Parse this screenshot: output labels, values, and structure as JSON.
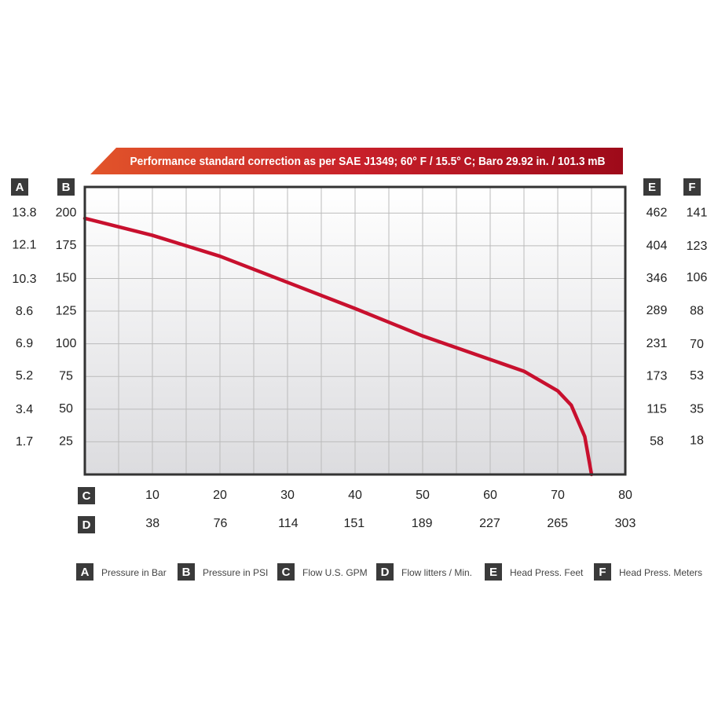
{
  "chart_data": {
    "type": "line",
    "title": "Performance standard correction as per SAE J1349;  60° F / 15.5° C;  Baro 29.92 in. / 101.3 mB",
    "x": [
      0,
      10,
      20,
      30,
      40,
      50,
      60,
      65,
      70,
      72,
      74,
      75
    ],
    "series": [
      {
        "color": "#c8102e",
        "values": [
          196,
          183,
          167,
          147,
          127,
          106,
          88,
          79,
          64,
          53,
          29,
          0
        ]
      }
    ],
    "xlim": [
      0,
      80
    ],
    "xticks": [
      10,
      20,
      30,
      40,
      50,
      60,
      70,
      80
    ],
    "xgrid": [
      5,
      10,
      15,
      20,
      25,
      30,
      35,
      40,
      45,
      50,
      55,
      60,
      65,
      70,
      75
    ],
    "ylim": [
      0,
      220
    ],
    "yticks": [
      25,
      50,
      75,
      100,
      125,
      150,
      175,
      200
    ],
    "grid": true,
    "x_key": "C",
    "y_key": "B",
    "extra_axes": [
      {
        "key": "A",
        "position": "left-outer",
        "lim": [
          0,
          15.18
        ],
        "ticks": [
          1.7,
          3.4,
          5.2,
          6.9,
          8.6,
          10.3,
          12.1,
          13.8
        ]
      },
      {
        "key": "E",
        "position": "right-inner",
        "lim": [
          0,
          508.2
        ],
        "ticks": [
          58,
          115,
          173,
          231,
          289,
          346,
          404,
          462
        ]
      },
      {
        "key": "F",
        "position": "right-outer",
        "lim": [
          0,
          155.1
        ],
        "ticks": [
          18,
          35,
          53,
          70,
          88,
          106,
          123,
          141
        ]
      },
      {
        "key": "D",
        "position": "bottom-outer",
        "lim": [
          0,
          303
        ],
        "ticks": [
          38,
          76,
          114,
          151,
          189,
          227,
          265,
          303
        ]
      }
    ],
    "legend": [
      {
        "key": "A",
        "name": "Pressure in Bar"
      },
      {
        "key": "B",
        "name": "Pressure in PSI"
      },
      {
        "key": "C",
        "name": "Flow U.S. GPM"
      },
      {
        "key": "D",
        "name": "Flow litters / Min."
      },
      {
        "key": "E",
        "name": "Head Press. Feet"
      },
      {
        "key": "F",
        "name": "Head Press. Meters"
      }
    ]
  }
}
